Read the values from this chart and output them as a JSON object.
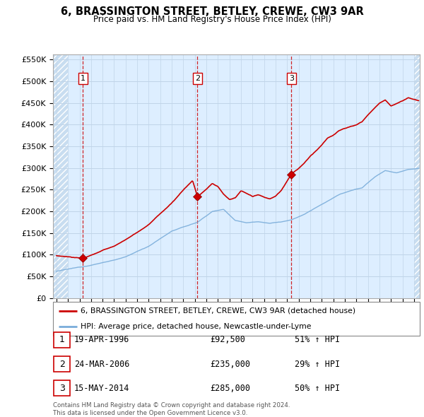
{
  "title": "6, BRASSINGTON STREET, BETLEY, CREWE, CW3 9AR",
  "subtitle": "Price paid vs. HM Land Registry's House Price Index (HPI)",
  "ylim": [
    0,
    562500
  ],
  "yticks": [
    0,
    50000,
    100000,
    150000,
    200000,
    250000,
    300000,
    350000,
    400000,
    450000,
    500000,
    550000
  ],
  "xlim_start": 1993.7,
  "xlim_end": 2025.5,
  "sale_color": "#cc0000",
  "hpi_color": "#7aadda",
  "vline_color": "#cc0000",
  "bg_color": "#ddeeff",
  "hatch_color": "#c8ddf0",
  "grid_color": "#c0d4e8",
  "transactions": [
    {
      "num": 1,
      "date_num": 1996.3,
      "price": 92500
    },
    {
      "num": 2,
      "date_num": 2006.23,
      "price": 235000
    },
    {
      "num": 3,
      "date_num": 2014.37,
      "price": 285000
    }
  ],
  "legend_sale_label": "6, BRASSINGTON STREET, BETLEY, CREWE, CW3 9AR (detached house)",
  "legend_hpi_label": "HPI: Average price, detached house, Newcastle-under-Lyme",
  "footnote": "Contains HM Land Registry data © Crown copyright and database right 2024.\nThis data is licensed under the Open Government Licence v3.0.",
  "table_rows": [
    {
      "num": 1,
      "date": "19-APR-1996",
      "price": "£92,500",
      "pct": "51% ↑ HPI"
    },
    {
      "num": 2,
      "date": "24-MAR-2006",
      "price": "£235,000",
      "pct": "29% ↑ HPI"
    },
    {
      "num": 3,
      "date": "15-MAY-2014",
      "price": "£285,000",
      "pct": "50% ↑ HPI"
    }
  ]
}
